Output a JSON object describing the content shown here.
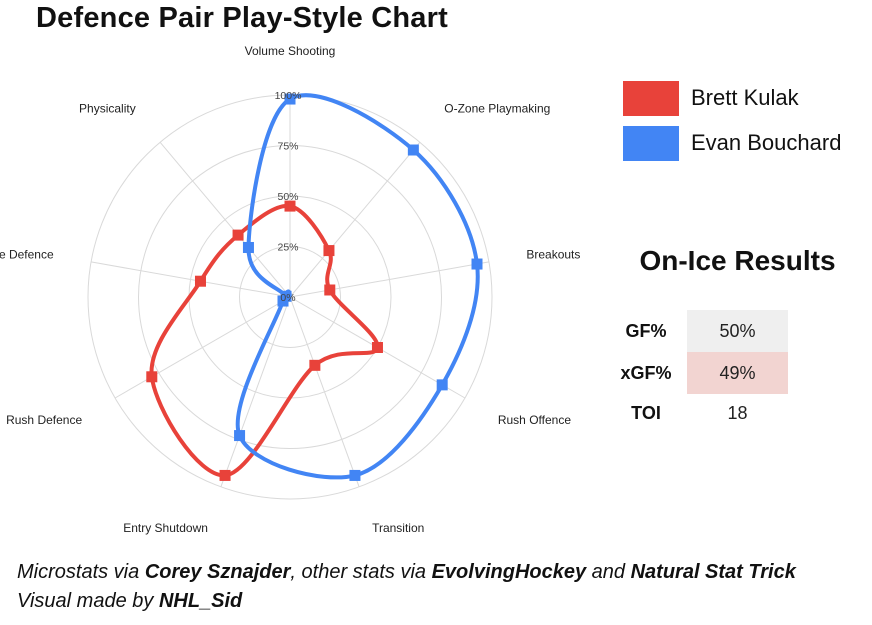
{
  "title": "Defence Pair Play-Style Chart",
  "chart_data": {
    "type": "radar",
    "axes": [
      "Volume Shooting",
      "O-Zone Playmaking",
      "Breakouts",
      "Rush Offence",
      "Transition",
      "Entry Shutdown",
      "Rush Defence",
      "In-Zone Defence",
      "Physicality"
    ],
    "ticks": [
      "0%",
      "25%",
      "50%",
      "75%",
      "100%"
    ],
    "range": [
      0,
      100
    ],
    "series": [
      {
        "name": "Brett Kulak",
        "color": "#e8423a",
        "values": [
          45,
          30,
          20,
          50,
          36,
          94,
          79,
          45,
          40
        ]
      },
      {
        "name": "Evan Bouchard",
        "color": "#4285f4",
        "values": [
          98,
          95,
          94,
          87,
          94,
          73,
          4,
          2,
          32
        ]
      }
    ]
  },
  "legend": {
    "items": [
      {
        "name": "Brett Kulak",
        "color": "#e8423a"
      },
      {
        "name": "Evan Bouchard",
        "color": "#4285f4"
      }
    ]
  },
  "on_ice_results": {
    "title": "On-Ice Results",
    "rows": [
      {
        "label": "GF%",
        "value": "50%",
        "bg": "#efefef"
      },
      {
        "label": "xGF%",
        "value": "49%",
        "bg": "#f2d4d1"
      },
      {
        "label": "TOI",
        "value": "18",
        "bg": "#ffffff"
      }
    ]
  },
  "credits": {
    "line1_a": "Microstats via ",
    "line1_b": "Corey Sznajder",
    "line1_c": ", other stats via ",
    "line1_d": "EvolvingHockey",
    "line1_e": " and ",
    "line1_f": "Natural Stat Trick",
    "line2_a": "Visual made by ",
    "line2_b": "NHL_Sid"
  }
}
